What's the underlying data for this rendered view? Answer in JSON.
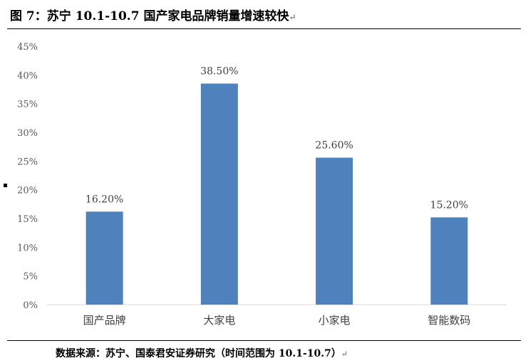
{
  "figure": {
    "title": "图 7：苏宁 10.1-10.7 国产家电品牌销量增速较快",
    "source": "数据来源：苏宁、国泰君安证券研究（时间范围为 10.1-10.7）",
    "return_mark": "↵"
  },
  "chart_data": {
    "type": "bar",
    "categories": [
      "国产品牌",
      "大家电",
      "小家电",
      "智能数码"
    ],
    "values": [
      16.2,
      38.5,
      25.6,
      15.2
    ],
    "data_labels": [
      "16.20%",
      "38.50%",
      "25.60%",
      "15.20%"
    ],
    "ylim": [
      0,
      45
    ],
    "y_ticks": [
      "0%",
      "5%",
      "10%",
      "15%",
      "20%",
      "25%",
      "30%",
      "35%",
      "40%",
      "45%"
    ],
    "grid": false,
    "bar_color": "#4f81bd"
  }
}
